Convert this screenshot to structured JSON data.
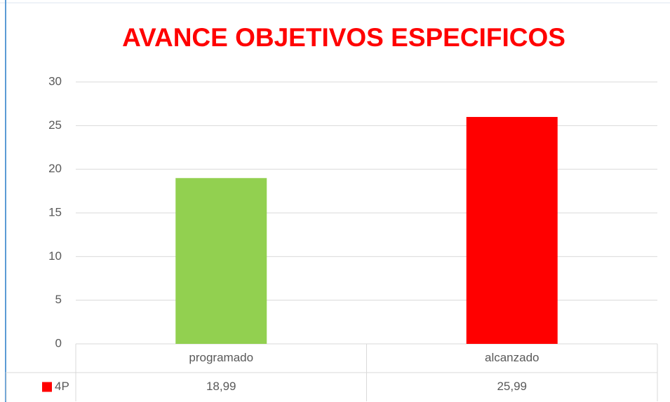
{
  "chart_data": {
    "type": "bar",
    "title": "AVANCE OBJETIVOS ESPECIFICOS",
    "categories": [
      "programado",
      "alcanzado"
    ],
    "series": [
      {
        "name": "4P",
        "color": "#ff0000",
        "point_colors": [
          "#92d050",
          "#ff0000"
        ],
        "values": [
          18.99,
          25.99
        ],
        "value_labels": [
          "18,99",
          "25,99"
        ]
      }
    ],
    "ylim": [
      0,
      30
    ],
    "yticks": [
      0,
      5,
      10,
      15,
      20,
      25,
      30
    ],
    "grid": true,
    "data_table": true
  }
}
